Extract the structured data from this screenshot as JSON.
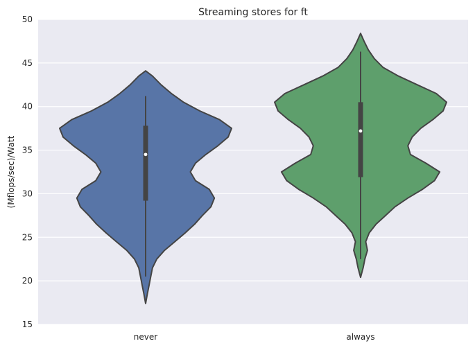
{
  "chart_data": {
    "type": "violin",
    "title": "Streaming stores for ft",
    "xlabel": "",
    "ylabel": "(Mflops/sec)/Watt",
    "ylim": [
      15,
      50
    ],
    "yticks": [
      15,
      20,
      25,
      30,
      35,
      40,
      45,
      50
    ],
    "grid": true,
    "categories": [
      "never",
      "always"
    ],
    "colors": [
      "#5875A7",
      "#5E9F6C"
    ],
    "edge_color": "#444444",
    "background": "#EAEAF2",
    "violins": [
      {
        "category": "never",
        "min": 17.4,
        "max": 44.1,
        "whisker_low": 20.5,
        "whisker_high": 41.2,
        "q1": 29.2,
        "median": 34.5,
        "q3": 37.8,
        "profile": [
          [
            17.4,
            0.0
          ],
          [
            18.5,
            0.02
          ],
          [
            19.5,
            0.04
          ],
          [
            20.5,
            0.06
          ],
          [
            21.5,
            0.08
          ],
          [
            22.5,
            0.13
          ],
          [
            23.5,
            0.22
          ],
          [
            24.5,
            0.34
          ],
          [
            25.5,
            0.46
          ],
          [
            26.5,
            0.57
          ],
          [
            27.5,
            0.66
          ],
          [
            28.5,
            0.76
          ],
          [
            29.5,
            0.8
          ],
          [
            30.5,
            0.74
          ],
          [
            31.5,
            0.58
          ],
          [
            32.5,
            0.52
          ],
          [
            33.5,
            0.58
          ],
          [
            34.5,
            0.7
          ],
          [
            35.5,
            0.84
          ],
          [
            36.5,
            0.96
          ],
          [
            37.5,
            1.0
          ],
          [
            38.5,
            0.86
          ],
          [
            39.5,
            0.63
          ],
          [
            40.5,
            0.44
          ],
          [
            41.5,
            0.3
          ],
          [
            42.5,
            0.18
          ],
          [
            43.5,
            0.08
          ],
          [
            44.1,
            0.0
          ]
        ]
      },
      {
        "category": "always",
        "min": 20.4,
        "max": 48.4,
        "whisker_low": 22.5,
        "whisker_high": 46.3,
        "q1": 31.9,
        "median": 37.2,
        "q3": 40.5,
        "profile": [
          [
            20.4,
            0.0
          ],
          [
            21.5,
            0.03
          ],
          [
            22.5,
            0.05
          ],
          [
            23.5,
            0.08
          ],
          [
            24.5,
            0.06
          ],
          [
            25.5,
            0.1
          ],
          [
            26.5,
            0.18
          ],
          [
            27.5,
            0.29
          ],
          [
            28.5,
            0.4
          ],
          [
            29.5,
            0.55
          ],
          [
            30.5,
            0.72
          ],
          [
            31.5,
            0.86
          ],
          [
            32.5,
            0.92
          ],
          [
            33.5,
            0.76
          ],
          [
            34.5,
            0.58
          ],
          [
            35.5,
            0.55
          ],
          [
            36.5,
            0.6
          ],
          [
            37.5,
            0.7
          ],
          [
            38.5,
            0.84
          ],
          [
            39.5,
            0.96
          ],
          [
            40.5,
            1.0
          ],
          [
            41.5,
            0.88
          ],
          [
            42.5,
            0.66
          ],
          [
            43.5,
            0.44
          ],
          [
            44.5,
            0.26
          ],
          [
            45.5,
            0.16
          ],
          [
            46.5,
            0.09
          ],
          [
            47.5,
            0.04
          ],
          [
            48.4,
            0.0
          ]
        ]
      }
    ]
  }
}
